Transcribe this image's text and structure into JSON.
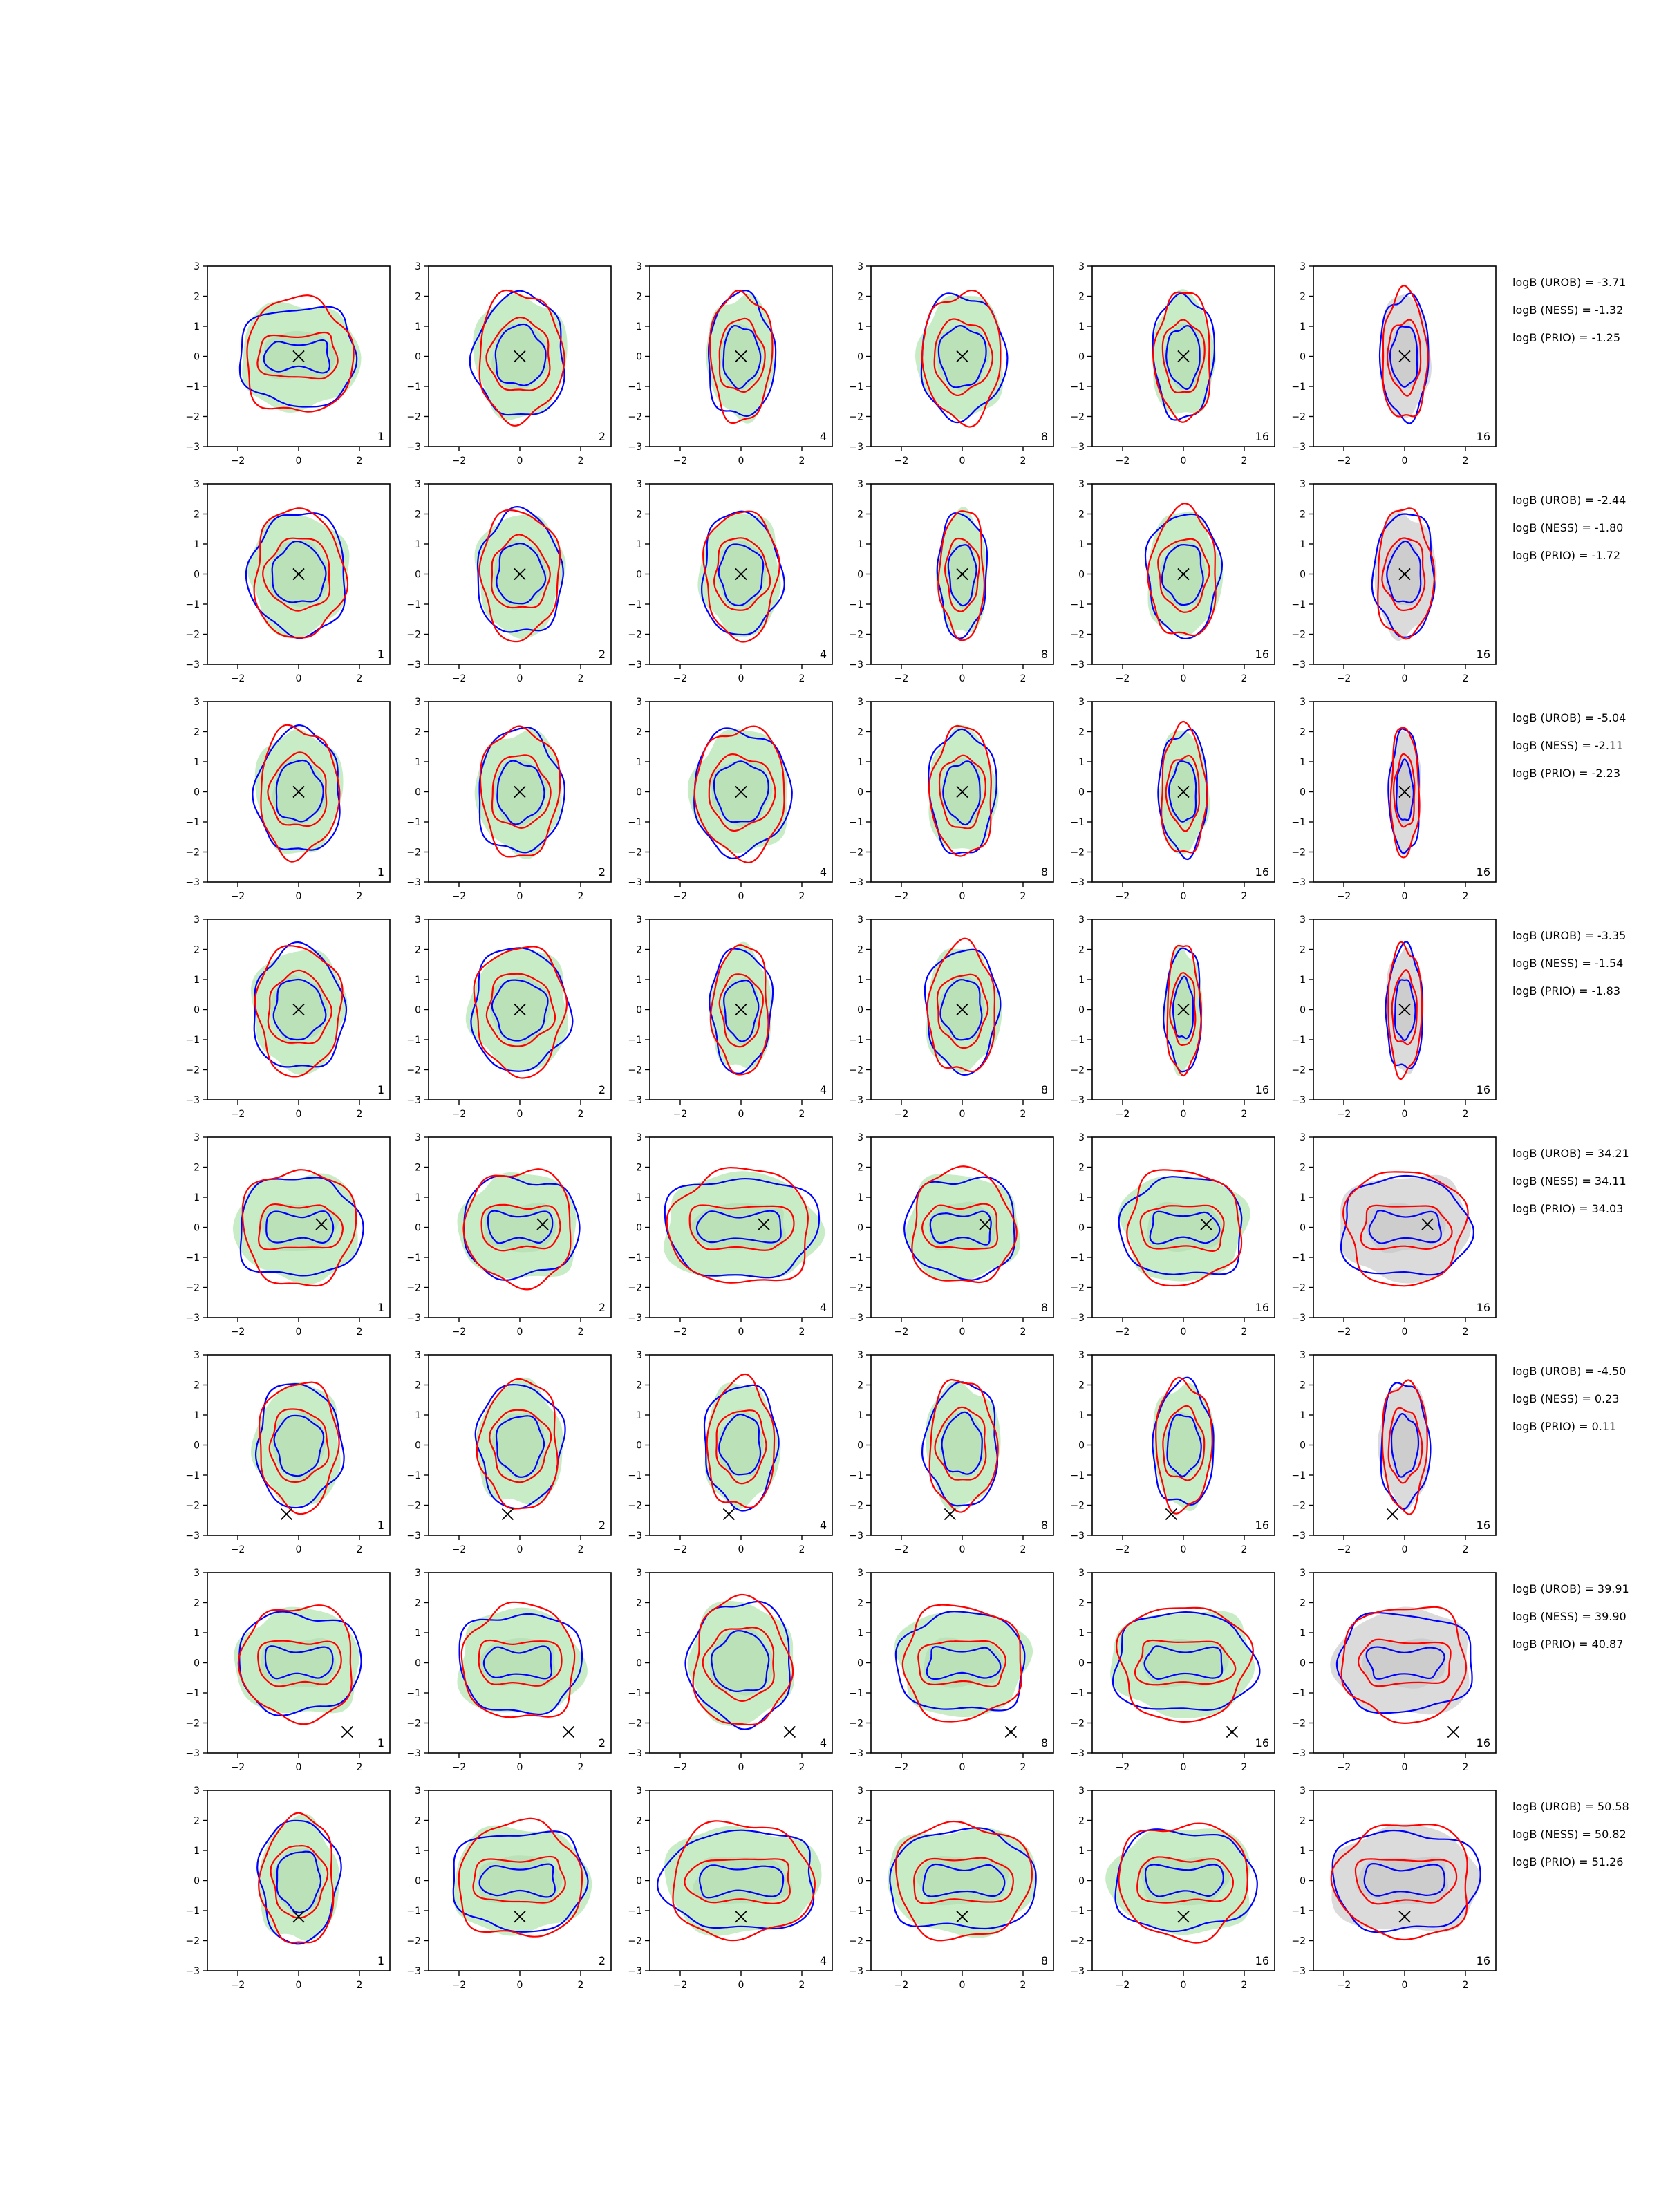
{
  "chart_data": {
    "type": "contour-grid",
    "rows": 8,
    "cols": 6,
    "xlim": [
      -3,
      3
    ],
    "ylim": [
      -3,
      3
    ],
    "xticks": [
      -2,
      0,
      2
    ],
    "yticks": [
      -3,
      -2,
      -1,
      0,
      1,
      2,
      3
    ],
    "xtick_labels": [
      "−2",
      "0",
      "2"
    ],
    "ytick_labels": [
      "−3",
      "−2",
      "−1",
      "0",
      "1",
      "2",
      "3"
    ],
    "panel_labels": [
      "1",
      "2",
      "4",
      "8",
      "16",
      "16"
    ],
    "colors": {
      "fill_green": "#c2ebc0",
      "fill_grey": "#d7d7d7",
      "line_blue": "#0000ff",
      "line_red": "#ff0000",
      "marker": "#000000"
    },
    "series_colors": [
      "#0000ff",
      "#ff0000"
    ],
    "markers": [
      {
        "x": 0,
        "y": 0
      },
      {
        "x": 0,
        "y": 0
      },
      {
        "x": 0,
        "y": 0
      },
      {
        "x": 0,
        "y": 0
      },
      {
        "x": 0.75,
        "y": 0.1
      },
      {
        "x": -0.4,
        "y": -2.3
      },
      {
        "x": 1.6,
        "y": -2.3
      },
      {
        "x": 0,
        "y": -1.2
      }
    ],
    "row_widths": [
      [
        1.9,
        1.5,
        1.1,
        1.4,
        1.0,
        0.8
      ],
      [
        1.6,
        1.4,
        1.3,
        0.8,
        1.2,
        1.0
      ],
      [
        1.4,
        1.4,
        1.6,
        1.1,
        0.8,
        0.5
      ],
      [
        1.5,
        1.6,
        1.0,
        1.2,
        0.6,
        0.6
      ],
      [
        2.0,
        1.9,
        2.5,
        1.8,
        2.0,
        2.1
      ],
      [
        1.4,
        1.4,
        1.2,
        1.2,
        1.0,
        0.8
      ],
      [
        2.0,
        2.0,
        1.7,
        2.1,
        2.3,
        2.2
      ],
      [
        1.3,
        2.2,
        2.5,
        2.4,
        2.3,
        2.4
      ]
    ],
    "bayes_factors": [
      [
        "logB (UROB) = -3.71",
        "logB (NESS) = -1.32",
        "logB (PRIO) = -1.25"
      ],
      [
        "logB (UROB) = -2.44",
        "logB (NESS) = -1.80",
        "logB (PRIO) = -1.72"
      ],
      [
        "logB (UROB) = -5.04",
        "logB (NESS) = -2.11",
        "logB (PRIO) = -2.23"
      ],
      [
        "logB (UROB) = -3.35",
        "logB (NESS) = -1.54",
        "logB (PRIO) = -1.83"
      ],
      [
        "logB (UROB) = 34.21",
        "logB (NESS) = 34.11",
        "logB (PRIO) = 34.03"
      ],
      [
        "logB (UROB) = -4.50",
        "logB (NESS) = 0.23",
        "logB (PRIO) = 0.11"
      ],
      [
        "logB (UROB) = 39.91",
        "logB (NESS) = 39.90",
        "logB (PRIO) = 40.87"
      ],
      [
        "logB (UROB) = 50.58",
        "logB (NESS) = 50.82",
        "logB (PRIO) = 51.26"
      ]
    ]
  }
}
